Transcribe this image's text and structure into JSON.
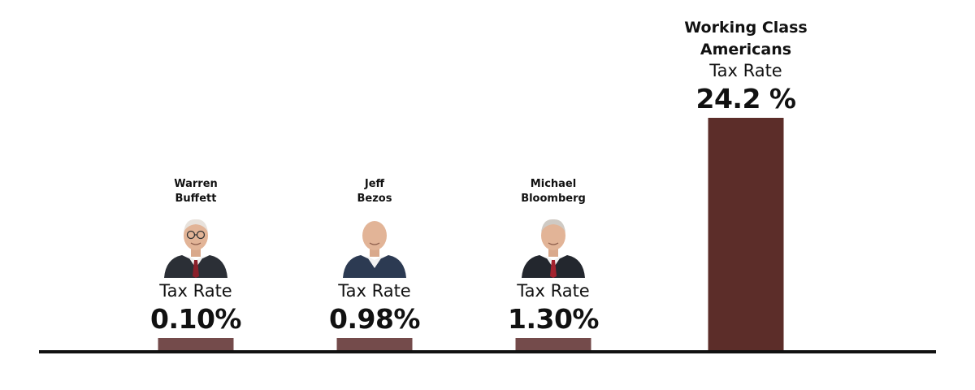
{
  "chart_data": {
    "type": "bar",
    "categories": [
      "Warren Buffett",
      "Jeff Bezos",
      "Michael Bloomberg",
      "Working Class Americans"
    ],
    "name_lines": [
      [
        "Warren",
        "Buffett"
      ],
      [
        "Jeff",
        "Bezos"
      ],
      [
        "Michael",
        "Bloomberg"
      ],
      [
        "Working Class",
        "Americans"
      ]
    ],
    "values": [
      0.1,
      0.98,
      1.3,
      24.2
    ],
    "value_labels": [
      "0.10%",
      "0.98%",
      "1.30%",
      "24.2 %"
    ],
    "rate_label": "Tax Rate",
    "bar_colors": [
      "#744b4b",
      "#744b4b",
      "#744b4b",
      "#5c2d29"
    ],
    "portraits": [
      {
        "name": "warren-buffett-photo",
        "hair": "#e8e2dc",
        "suit": "#2b2f36",
        "tie": "#8a1f2a",
        "glasses": true
      },
      {
        "name": "jeff-bezos-photo",
        "hair": null,
        "suit": "#2c3a52",
        "tie": null,
        "glasses": false
      },
      {
        "name": "michael-bloomberg-photo",
        "hair": "#cfcac4",
        "suit": "#23272e",
        "tie": "#a3222e",
        "glasses": false
      },
      null
    ],
    "baseline_color": "#111111",
    "grid": false,
    "legend": "none"
  }
}
